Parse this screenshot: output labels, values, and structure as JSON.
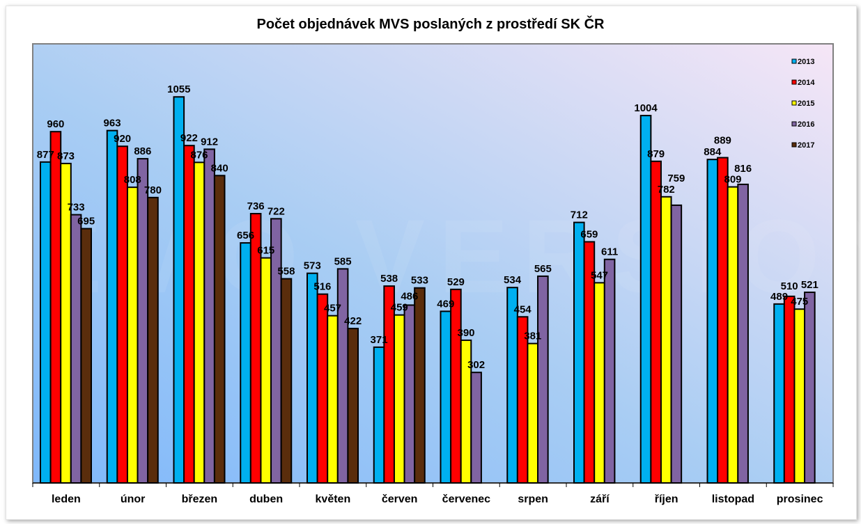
{
  "chart_data": {
    "type": "bar",
    "title": "Počet objednávek MVS poslaných z prostředí SK ČR",
    "xlabel": "",
    "ylabel": "",
    "ylim": [
      0,
      1200
    ],
    "grid": false,
    "legend_position": "top-right",
    "watermark": "DEMO VERSION",
    "categories": [
      "leden",
      "únor",
      "březen",
      "duben",
      "květen",
      "červen",
      "červenec",
      "srpen",
      "září",
      "říjen",
      "listopad",
      "prosinec"
    ],
    "series": [
      {
        "name": "2013",
        "color": "#00B0F0",
        "values": [
          877,
          963,
          1055,
          656,
          573,
          371,
          469,
          534,
          712,
          1004,
          884,
          489
        ]
      },
      {
        "name": "2014",
        "color": "#FF0000",
        "values": [
          960,
          920,
          922,
          736,
          516,
          538,
          529,
          454,
          659,
          879,
          889,
          510
        ]
      },
      {
        "name": "2015",
        "color": "#FFFF00",
        "values": [
          873,
          808,
          876,
          615,
          457,
          459,
          390,
          381,
          547,
          782,
          809,
          475
        ]
      },
      {
        "name": "2016",
        "color": "#8064A2",
        "values": [
          733,
          886,
          912,
          722,
          585,
          486,
          302,
          565,
          611,
          759,
          816,
          521
        ]
      },
      {
        "name": "2017",
        "color": "#5A2D0C",
        "values": [
          695,
          780,
          840,
          558,
          422,
          533,
          null,
          null,
          null,
          null,
          null,
          null
        ]
      }
    ]
  }
}
